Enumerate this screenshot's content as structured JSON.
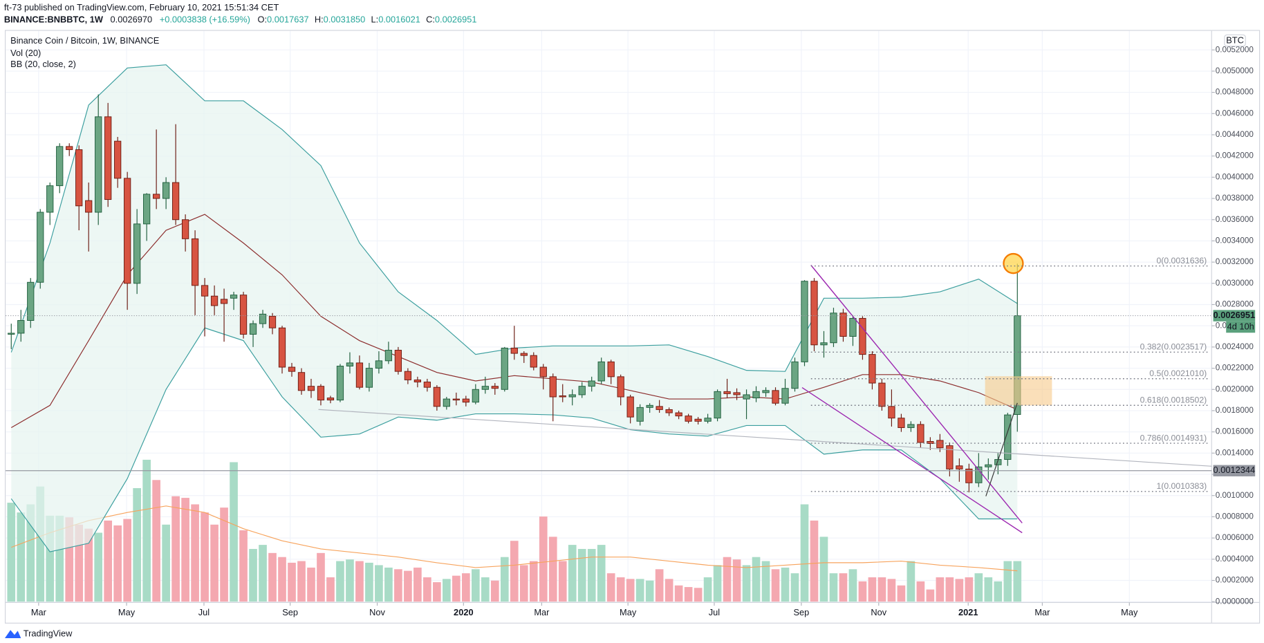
{
  "header": {
    "publisher_line": "ft-73 published on TradingView.com, February 10, 2021 15:51:34 CET",
    "symbol": "BINANCE:BNBBTC, 1W",
    "last": "0.0026970",
    "change": "+0.0003838 (+16.59%)",
    "ohlc": [
      [
        "O:",
        "0.0017637"
      ],
      [
        "H:",
        "0.0031850"
      ],
      [
        "L:",
        "0.0016021"
      ],
      [
        "C:",
        "0.0026951"
      ]
    ]
  },
  "legend": [
    "Binance Coin / Bitcoin, 1W, BINANCE",
    "Vol (20)",
    "BB (20, close, 2)"
  ],
  "currency": "BTC",
  "footer": "TradingView",
  "chart_data": {
    "type": "candlestick",
    "up_color": "#6ba583",
    "down_color": "#d75442",
    "up_volume_color": "#a8dbc6",
    "down_volume_color": "#f4a8b0",
    "open": [
      0.00252,
      0.00253,
      0.00265,
      0.00301,
      0.00367,
      0.00392,
      0.00429,
      0.00426,
      0.00378,
      0.00367,
      0.00457,
      0.00434,
      0.00399,
      0.003,
      0.00356,
      0.00384,
      0.0038,
      0.00395,
      0.0036,
      0.00342,
      0.00298,
      0.00288,
      0.00285,
      0.00286,
      0.00289,
      0.00252,
      0.00262,
      0.00269,
      0.00258,
      0.00221,
      0.00216,
      0.00203,
      0.00203,
      0.00192,
      0.0019,
      0.00222,
      0.00225,
      0.00202,
      0.0022,
      0.00227,
      0.00237,
      0.00217,
      0.00209,
      0.00207,
      0.00202,
      0.00184,
      0.00191,
      0.00191,
      0.00188,
      0.002,
      0.00203,
      0.002,
      0.00239,
      0.00234,
      0.00232,
      0.00221,
      0.00212,
      0.00194,
      0.00193,
      0.00195,
      0.00203,
      0.00208,
      0.00226,
      0.00212,
      0.00193,
      0.0017,
      0.00183,
      0.00184,
      0.00181,
      0.00178,
      0.00175,
      0.00172,
      0.0017,
      0.00173,
      0.00198,
      0.00197,
      0.00191,
      0.00192,
      0.00197,
      0.00199,
      0.00187,
      0.00201,
      0.00226,
      0.00302,
      0.00242,
      0.00244,
      0.00272,
      0.0025,
      0.00267,
      0.00233,
      0.00206,
      0.00184,
      0.00173,
      0.00164,
      0.00167,
      0.00151,
      0.00152,
      0.00147,
      0.00128,
      0.00125,
      0.00112,
      0.00127,
      0.00129,
      0.00134,
      0.0017637
    ],
    "high": [
      0.00262,
      0.00275,
      0.00305,
      0.0037,
      0.00395,
      0.00432,
      0.00432,
      0.0043,
      0.00395,
      0.00478,
      0.0047,
      0.00438,
      0.00405,
      0.0037,
      0.00385,
      0.00445,
      0.004,
      0.0045,
      0.00365,
      0.0035,
      0.00305,
      0.00298,
      0.00295,
      0.00292,
      0.00292,
      0.00265,
      0.00275,
      0.00272,
      0.0026,
      0.00225,
      0.0022,
      0.0021,
      0.00205,
      0.00194,
      0.00224,
      0.00235,
      0.00232,
      0.00225,
      0.00236,
      0.00245,
      0.0024,
      0.0022,
      0.00212,
      0.0021,
      0.00204,
      0.00193,
      0.00197,
      0.00194,
      0.00205,
      0.00212,
      0.00206,
      0.0024,
      0.0026,
      0.00236,
      0.00235,
      0.00224,
      0.00215,
      0.00205,
      0.002,
      0.00207,
      0.00212,
      0.0023,
      0.00228,
      0.00214,
      0.00195,
      0.00186,
      0.00187,
      0.0019,
      0.00183,
      0.0018,
      0.00177,
      0.00174,
      0.00177,
      0.002,
      0.0021,
      0.00201,
      0.002,
      0.00203,
      0.00202,
      0.00202,
      0.0021,
      0.0023,
      0.00303,
      0.00305,
      0.00255,
      0.00277,
      0.00276,
      0.0027,
      0.00269,
      0.00236,
      0.0021,
      0.002,
      0.00177,
      0.0017,
      0.0017,
      0.00155,
      0.00158,
      0.0015,
      0.00135,
      0.0013,
      0.0014,
      0.00135,
      0.0014,
      0.00178,
      0.003185
    ],
    "low": [
      0.00238,
      0.00245,
      0.00258,
      0.00295,
      0.00355,
      0.00385,
      0.0042,
      0.0035,
      0.0033,
      0.00355,
      0.00372,
      0.0039,
      0.00275,
      0.0029,
      0.0034,
      0.0037,
      0.0037,
      0.00355,
      0.0033,
      0.0027,
      0.0025,
      0.0027,
      0.00245,
      0.00275,
      0.00248,
      0.0024,
      0.00258,
      0.00252,
      0.00215,
      0.00212,
      0.00195,
      0.00192,
      0.00185,
      0.00187,
      0.00188,
      0.00215,
      0.002,
      0.00198,
      0.00215,
      0.00224,
      0.00214,
      0.00205,
      0.00202,
      0.00198,
      0.0018,
      0.00181,
      0.00185,
      0.00184,
      0.00186,
      0.00196,
      0.00195,
      0.00198,
      0.00228,
      0.00225,
      0.00218,
      0.002,
      0.0017,
      0.00188,
      0.00185,
      0.00192,
      0.00198,
      0.00205,
      0.00205,
      0.00185,
      0.00168,
      0.00166,
      0.00178,
      0.00178,
      0.00175,
      0.00172,
      0.00168,
      0.00167,
      0.00168,
      0.0017,
      0.00192,
      0.0019,
      0.00172,
      0.00188,
      0.00193,
      0.00185,
      0.00185,
      0.00198,
      0.00222,
      0.00236,
      0.0023,
      0.0024,
      0.00245,
      0.00241,
      0.00228,
      0.002,
      0.0018,
      0.00165,
      0.0016,
      0.0016,
      0.00145,
      0.00143,
      0.00141,
      0.00118,
      0.00113,
      0.00103,
      0.00108,
      0.00115,
      0.0012,
      0.00128,
      0.0016021
    ],
    "close": [
      0.00253,
      0.00265,
      0.00301,
      0.00367,
      0.00392,
      0.00429,
      0.00426,
      0.00373,
      0.00367,
      0.00457,
      0.00379,
      0.00399,
      0.003,
      0.00356,
      0.00384,
      0.0038,
      0.00395,
      0.0036,
      0.00342,
      0.00298,
      0.00288,
      0.00279,
      0.00281,
      0.00289,
      0.00252,
      0.00262,
      0.00271,
      0.00258,
      0.00221,
      0.00217,
      0.00199,
      0.00199,
      0.0019,
      0.0019,
      0.00222,
      0.00225,
      0.00202,
      0.0022,
      0.00227,
      0.00237,
      0.00217,
      0.00209,
      0.00207,
      0.00202,
      0.00184,
      0.00191,
      0.0019,
      0.00188,
      0.002,
      0.00203,
      0.00201,
      0.00239,
      0.00234,
      0.00232,
      0.00221,
      0.00212,
      0.00193,
      0.00193,
      0.00195,
      0.00203,
      0.00208,
      0.00226,
      0.00212,
      0.00193,
      0.00174,
      0.00183,
      0.00185,
      0.00181,
      0.00178,
      0.00175,
      0.0017,
      0.0017,
      0.00173,
      0.00198,
      0.00196,
      0.00195,
      0.00195,
      0.00198,
      0.00199,
      0.00187,
      0.00201,
      0.00226,
      0.00302,
      0.00242,
      0.00244,
      0.00272,
      0.0025,
      0.00267,
      0.00233,
      0.00206,
      0.00184,
      0.00173,
      0.00164,
      0.00167,
      0.0015,
      0.00149,
      0.00145,
      0.00125,
      0.00125,
      0.00112,
      0.00127,
      0.00129,
      0.00134,
      0.00176,
      0.0026951
    ],
    "volume": [
      122,
      110,
      120,
      142,
      106,
      106,
      104,
      95,
      90,
      85,
      100,
      94,
      102,
      140,
      175,
      150,
      95,
      130,
      128,
      120,
      110,
      95,
      116,
      172,
      88,
      65,
      70,
      60,
      55,
      48,
      50,
      42,
      60,
      30,
      50,
      52,
      50,
      48,
      45,
      42,
      40,
      38,
      42,
      30,
      24,
      28,
      32,
      35,
      40,
      30,
      26,
      55,
      75,
      45,
      50,
      105,
      80,
      50,
      70,
      65,
      65,
      70,
      35,
      30,
      28,
      28,
      26,
      40,
      28,
      20,
      18,
      17,
      30,
      45,
      55,
      52,
      45,
      55,
      50,
      40,
      42,
      35,
      120,
      100,
      80,
      35,
      35,
      40,
      25,
      30,
      30,
      28,
      20,
      50,
      25,
      15,
      30,
      30,
      28,
      30,
      35,
      30,
      25,
      50,
      50
    ],
    "vol_ma": {
      "color": "#f7a35c",
      "x": [
        0,
        4,
        8,
        12,
        16,
        20,
        24,
        28,
        32,
        36,
        40,
        44,
        48,
        52,
        56,
        60,
        64,
        68,
        72,
        76,
        80,
        84,
        88,
        92,
        96,
        100,
        104
      ],
      "values": [
        67,
        85,
        100,
        110,
        118,
        110,
        90,
        75,
        65,
        60,
        55,
        48,
        42,
        45,
        50,
        55,
        55,
        50,
        45,
        42,
        45,
        48,
        48,
        50,
        45,
        42,
        38
      ]
    },
    "bb": {
      "line_color": "#3a9e9e",
      "basis_color": "#8b2b2b",
      "fill": "#e6f4f0",
      "x": [
        0,
        4,
        8,
        12,
        16,
        20,
        24,
        28,
        32,
        36,
        40,
        44,
        48,
        52,
        56,
        60,
        64,
        68,
        72,
        76,
        80,
        84,
        88,
        92,
        96,
        100,
        104
      ],
      "upper": [
        0.00235,
        0.00338,
        0.00468,
        0.00503,
        0.00506,
        0.00472,
        0.00472,
        0.00445,
        0.00411,
        0.00338,
        0.00292,
        0.00265,
        0.00233,
        0.00239,
        0.00241,
        0.00241,
        0.00241,
        0.00242,
        0.00231,
        0.00218,
        0.00217,
        0.00286,
        0.00286,
        0.00287,
        0.00292,
        0.00304,
        0.00281
      ],
      "basis": [
        0.00164,
        0.00185,
        0.00246,
        0.00308,
        0.0035,
        0.00365,
        0.00338,
        0.00308,
        0.00269,
        0.00246,
        0.00231,
        0.00216,
        0.00208,
        0.00213,
        0.0021,
        0.00207,
        0.00199,
        0.00191,
        0.00191,
        0.00193,
        0.00191,
        0.00202,
        0.00214,
        0.00214,
        0.00208,
        0.00197,
        0.00181
      ],
      "lower": [
        0.00097,
        0.00047,
        0.00055,
        0.00116,
        0.002,
        0.00258,
        0.00246,
        0.00193,
        0.00155,
        0.00158,
        0.00174,
        0.00171,
        0.00177,
        0.00177,
        0.00176,
        0.00173,
        0.00162,
        0.00158,
        0.00156,
        0.00166,
        0.00166,
        0.00139,
        0.00143,
        0.00143,
        0.00116,
        0.00078,
        0.00078
      ]
    },
    "fib": {
      "levels": [
        0.0031636,
        0.0023517,
        0.002101,
        0.0018502,
        0.0014931,
        0.0010383
      ],
      "value_labels": [
        "0(0.0031636)",
        "0.382(0.0023517)",
        "0.5(0.0021010)",
        "0.618(0.0018502)",
        "0.786(0.0014931)",
        "1(0.0010383)"
      ]
    },
    "last_price": {
      "value": 0.0026951,
      "label": "0.0026951",
      "countdown": "4d 10h",
      "color": "#5ba17d"
    },
    "marker_line": {
      "value": 0.0012344,
      "label": "0.0012344",
      "color": "#9598a1"
    },
    "xlim": [
      -0.58,
      124.08
    ],
    "xticks": [
      {
        "value": 2.83,
        "label": "Mar"
      },
      {
        "value": 11.92,
        "label": "May"
      },
      {
        "value": 19.92,
        "label": "Jul"
      },
      {
        "value": 28.83,
        "label": "Sep"
      },
      {
        "value": 37.83,
        "label": "Nov"
      },
      {
        "value": 46.75,
        "label": "2020"
      },
      {
        "value": 54.83,
        "label": "Mar"
      },
      {
        "value": 63.75,
        "label": "May"
      },
      {
        "value": 72.67,
        "label": "Jul"
      },
      {
        "value": 81.67,
        "label": "Sep"
      },
      {
        "value": 89.67,
        "label": "Nov"
      },
      {
        "value": 98.92,
        "label": "2021"
      },
      {
        "value": 106.58,
        "label": "Mar"
      },
      {
        "value": 115.58,
        "label": "May"
      }
    ],
    "ylim": [
      0,
      0.00538
    ],
    "yticks": [
      {
        "value": 0,
        "label": "0.0000000"
      },
      {
        "value": 0.0002,
        "label": "0.0002000"
      },
      {
        "value": 0.0004,
        "label": "0.0004000"
      },
      {
        "value": 0.0006,
        "label": "0.0006000"
      },
      {
        "value": 0.0008,
        "label": "0.0008000"
      },
      {
        "value": 0.001,
        "label": "0.0010000"
      },
      {
        "value": 0.0012,
        "label": "0.0012000"
      },
      {
        "value": 0.0014,
        "label": "0.0014000"
      },
      {
        "value": 0.0016,
        "label": "0.0016000"
      },
      {
        "value": 0.0018,
        "label": "0.0018000"
      },
      {
        "value": 0.002,
        "label": "0.0020000"
      },
      {
        "value": 0.0022,
        "label": "0.0022000"
      },
      {
        "value": 0.0024,
        "label": "0.0024000"
      },
      {
        "value": 0.0026,
        "label": "0.0026000"
      },
      {
        "value": 0.0028,
        "label": "0.0028000"
      },
      {
        "value": 0.003,
        "label": "0.0030000"
      },
      {
        "value": 0.0032,
        "label": "0.0032000"
      },
      {
        "value": 0.0034,
        "label": "0.0034000"
      },
      {
        "value": 0.0036,
        "label": "0.0036000"
      },
      {
        "value": 0.0038,
        "label": "0.0038000"
      },
      {
        "value": 0.004,
        "label": "0.0040000"
      },
      {
        "value": 0.0042,
        "label": "0.0042000"
      },
      {
        "value": 0.0044,
        "label": "0.0044000"
      },
      {
        "value": 0.0046,
        "label": "0.0046000"
      },
      {
        "value": 0.0048,
        "label": "0.0048000"
      },
      {
        "value": 0.005,
        "label": "0.0050000"
      },
      {
        "value": 0.0052,
        "label": "0.0052000"
      }
    ],
    "grid": true
  }
}
